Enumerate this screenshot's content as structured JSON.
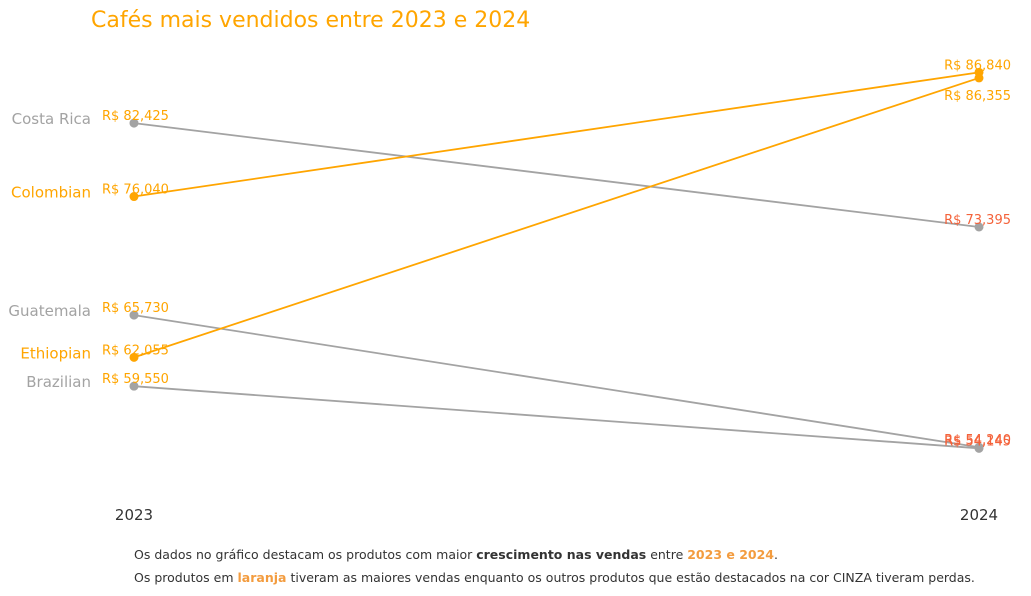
{
  "chart_data": {
    "type": "line",
    "title": "Cafés mais vendidos entre 2023 e 2024",
    "x": [
      "2023",
      "2024"
    ],
    "series": [
      {
        "name": "Costa Rica",
        "values": [
          82425,
          73395
        ],
        "value_labels": [
          "R$ 82,425",
          "R$ 73,395"
        ],
        "highlight": false
      },
      {
        "name": "Colombian",
        "values": [
          76040,
          86840
        ],
        "value_labels": [
          "R$ 76,040",
          "R$ 86,840"
        ],
        "highlight": true
      },
      {
        "name": "Guatemala",
        "values": [
          65730,
          54240
        ],
        "value_labels": [
          "R$ 65,730",
          "R$ 54,240"
        ],
        "highlight": false
      },
      {
        "name": "Ethiopian",
        "values": [
          62055,
          86355
        ],
        "value_labels": [
          "R$ 62,055",
          "R$ 86,355"
        ],
        "highlight": true
      },
      {
        "name": "Brazilian",
        "values": [
          59550,
          54145
        ],
        "value_labels": [
          "R$ 59,550",
          "R$ 54,145"
        ],
        "highlight": false
      }
    ],
    "ylim": [
      50000,
      90000
    ],
    "grid": false,
    "legend": "none"
  },
  "colors": {
    "highlight": "#FFA500",
    "muted": "#A3A3A3",
    "loss_label": "#F4623A",
    "text_orange": "#F39C3F",
    "text_dark": "#333333"
  },
  "footnote": {
    "line1_pre": "Os dados no gráfico destacam os produtos com maior ",
    "line1_bold": "crescimento nas vendas",
    "line1_mid": " entre ",
    "line1_years": "2023 e 2024",
    "line1_end": ".",
    "line2_pre": "Os produtos em ",
    "line2_orange": "laranja",
    "line2_post": " tiveram as maiores vendas enquanto os outros produtos que estão destacados na cor CINZA tiveram perdas."
  }
}
